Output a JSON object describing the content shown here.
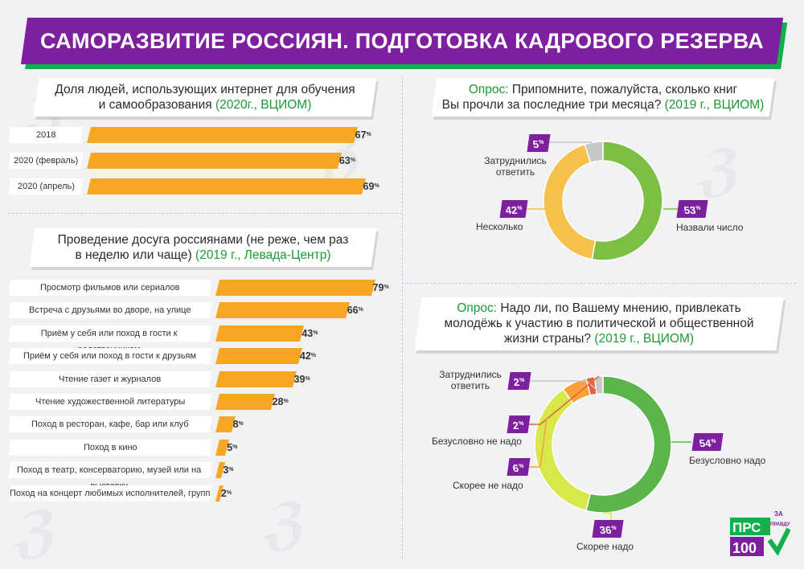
{
  "title": "САМОРАЗВИТИЕ РОССИЯН. ПОДГОТОВКА КАДРОВОГО РЕЗЕРВА",
  "chart_data": [
    {
      "type": "bar",
      "title_line1": "Доля людей, использующих интернет для обучения",
      "title_line2_a": "и самообразования ",
      "title_source": "(2020г., ВЦИОМ)",
      "categories": [
        "2018",
        "2020 (февраль)",
        "2020 (апрель)"
      ],
      "values": [
        67,
        63,
        69
      ],
      "unit": "%"
    },
    {
      "type": "bar",
      "title_line1": "Проведение досуга россиянами (не реже, чем раз",
      "title_line2_a": "в неделю или чаще) ",
      "title_source": "(2019 г., Левада-Центр)",
      "categories": [
        "Просмотр фильмов или сериалов",
        "Встреча с друзьями во дворе, на улице",
        "Приём у себя или поход в гости к родственникам",
        "Приём у себя или поход в гости к друзьям",
        "Чтение газет и журналов",
        "Чтение художественной литературы",
        "Поход в ресторан, кафе, бар или клуб",
        "Поход в кино",
        "Поход в театр, консерваторию, музей или на выставку",
        "Поход на концерт любимых исполнителей, групп"
      ],
      "values": [
        79,
        66,
        43,
        42,
        39,
        28,
        8,
        5,
        3,
        2
      ],
      "unit": "%"
    },
    {
      "type": "pie",
      "title_prefix": "Опрос:",
      "title_line1": " Припомните, пожалуйста, сколько книг",
      "title_line2_a": "Вы прочли за последние три месяца? ",
      "title_source": "(2019 г., ВЦИОМ)",
      "slices": [
        {
          "label": "Назвали число",
          "value": 53,
          "color": "#7bc043"
        },
        {
          "label": "Несколько",
          "value": 42,
          "color": "#f7c04a"
        },
        {
          "label": "Затруднились ответить",
          "label_l1": "Затруднились",
          "label_l2": "ответить",
          "value": 5,
          "color": "#c8c8c8"
        }
      ],
      "unit": "%"
    },
    {
      "type": "pie",
      "title_prefix": "Опрос:",
      "title_line1": " Надо ли, по Вашему мнению, привлекать",
      "title_line2": "молодёжь к участию в политической и общественной",
      "title_line3_a": "жизни страны? ",
      "title_source": "(2019 г., ВЦИОМ)",
      "slices": [
        {
          "label": "Безусловно надо",
          "value": 54,
          "color": "#5cb54a"
        },
        {
          "label": "Скорее надо",
          "value": 36,
          "color": "#d8e84a"
        },
        {
          "label": "Скорее не надо",
          "value": 6,
          "color": "#f5a23a"
        },
        {
          "label": "Безусловно не надо",
          "value": 2,
          "color": "#e8603c"
        },
        {
          "label": "Затруднились ответить",
          "label_l1": "Затруднились",
          "label_l2": "ответить",
          "value": 2,
          "color": "#c8c8c8"
        }
      ],
      "unit": "%"
    }
  ],
  "logo": {
    "top": "ЗА",
    "line1": "ПРС",
    "line2": "ПРАВДУ",
    "line3": "100"
  },
  "colors": {
    "accent": "#7d1f9e",
    "green": "#12b04a",
    "bar": "#f6a623"
  }
}
